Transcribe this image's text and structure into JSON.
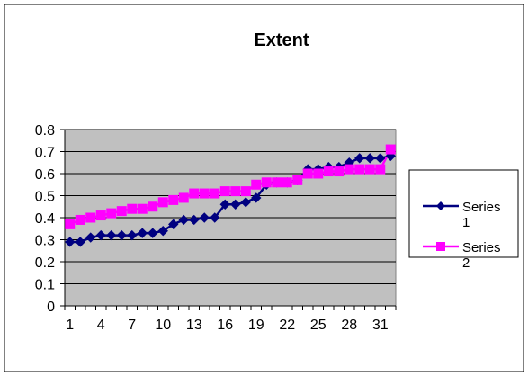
{
  "chart_data": {
    "type": "line",
    "title": "Extent",
    "xlabel": "",
    "ylabel": "",
    "ylim": [
      0,
      0.8
    ],
    "yticks": [
      "0",
      "0.1",
      "0.2",
      "0.3",
      "0.4",
      "0.5",
      "0.6",
      "0.7",
      "0.8"
    ],
    "x": [
      1,
      2,
      3,
      4,
      5,
      6,
      7,
      8,
      9,
      10,
      11,
      12,
      13,
      14,
      15,
      16,
      17,
      18,
      19,
      20,
      21,
      22,
      23,
      24,
      25,
      26,
      27,
      28,
      29,
      30,
      31,
      32
    ],
    "xtick_labels": [
      "1",
      "4",
      "7",
      "10",
      "13",
      "16",
      "19",
      "22",
      "25",
      "28",
      "31"
    ],
    "grid": true,
    "legend_position": "right",
    "plot_background": "#c0c0c0",
    "series": [
      {
        "name": "Series\n1",
        "color": "#000080",
        "marker": "diamond",
        "values": [
          0.29,
          0.29,
          0.31,
          0.32,
          0.32,
          0.32,
          0.32,
          0.33,
          0.33,
          0.34,
          0.37,
          0.39,
          0.39,
          0.4,
          0.4,
          0.46,
          0.46,
          0.47,
          0.49,
          0.55,
          0.56,
          0.56,
          0.57,
          0.62,
          0.62,
          0.63,
          0.63,
          0.65,
          0.67,
          0.67,
          0.67,
          0.68
        ]
      },
      {
        "name": "Series\n2",
        "color": "#ff00ff",
        "marker": "square",
        "values": [
          0.37,
          0.39,
          0.4,
          0.41,
          0.42,
          0.43,
          0.44,
          0.44,
          0.45,
          0.47,
          0.48,
          0.49,
          0.51,
          0.51,
          0.51,
          0.52,
          0.52,
          0.52,
          0.55,
          0.56,
          0.56,
          0.56,
          0.57,
          0.6,
          0.6,
          0.61,
          0.61,
          0.62,
          0.62,
          0.62,
          0.62,
          0.71
        ]
      }
    ]
  }
}
